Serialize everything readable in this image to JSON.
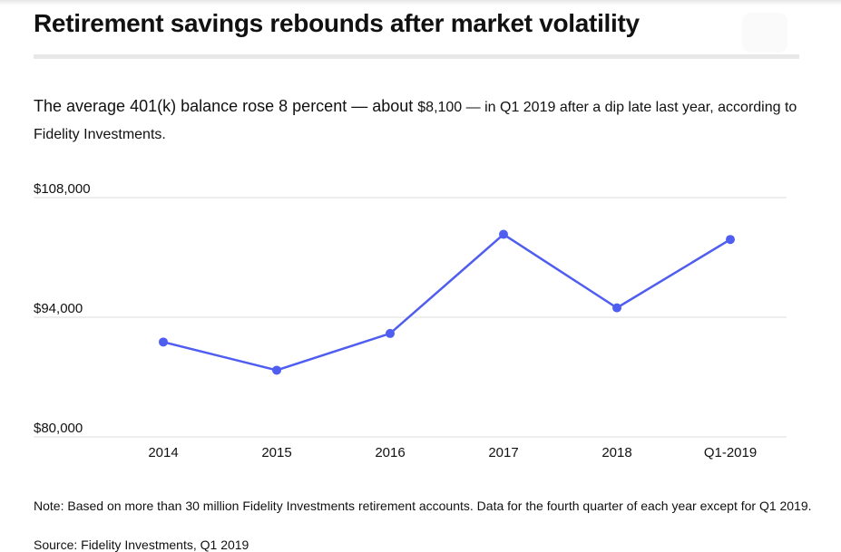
{
  "title": "Retirement savings rebounds after market volatility",
  "subtitle": {
    "lead": "The average 401(k) balance rose 8 percent — about ",
    "amount": "$8,100",
    "tail": "  — in Q1 2019 after a dip late last year, according to Fidelity Investments."
  },
  "note": "Note: Based on more than 30 million Fidelity Investments retirement accounts. Data for the fourth quarter of each year except for Q1 2019.",
  "source": "Source: Fidelity Investments, Q1 2019",
  "colors": {
    "line": "#4f5ef0",
    "grid": "#dddddd"
  },
  "chart_data": {
    "type": "line",
    "categories": [
      "2014",
      "2015",
      "2016",
      "2017",
      "2018",
      "Q1-2019"
    ],
    "series": [
      {
        "values": [
          91100,
          87800,
          92100,
          103700,
          95100,
          103100
        ]
      }
    ],
    "yticks": [
      {
        "value": 108000,
        "label": "$108,000"
      },
      {
        "value": 94000,
        "label": "$94,000"
      },
      {
        "value": 80000,
        "label": "$80,000"
      }
    ],
    "ylim": [
      80000,
      108000
    ],
    "grid": true,
    "legend": "none"
  }
}
